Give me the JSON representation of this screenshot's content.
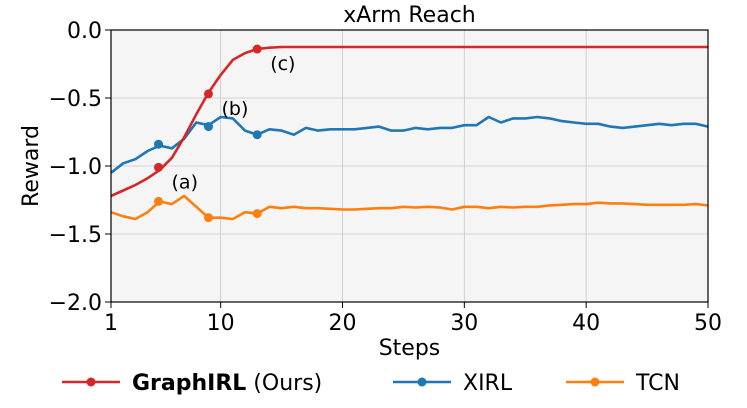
{
  "chart_data": {
    "type": "line",
    "title": "xArm Reach",
    "xlabel": "Steps",
    "ylabel": "Reward",
    "xlim": [
      1,
      50
    ],
    "ylim": [
      -2.0,
      0.0
    ],
    "xticks": [
      "1",
      "10",
      "20",
      "30",
      "40",
      "50"
    ],
    "yticks": [
      "0.0",
      "−0.5",
      "−1.0",
      "−1.5",
      "−2.0"
    ],
    "grid": true,
    "legend_position": "bottom",
    "x": [
      1,
      2,
      3,
      4,
      5,
      6,
      7,
      8,
      9,
      10,
      11,
      12,
      13,
      14,
      15,
      16,
      17,
      18,
      19,
      20,
      21,
      22,
      23,
      24,
      25,
      26,
      27,
      28,
      29,
      30,
      31,
      32,
      33,
      34,
      35,
      36,
      37,
      38,
      39,
      40,
      41,
      42,
      43,
      44,
      45,
      46,
      47,
      48,
      49,
      50
    ],
    "series": [
      {
        "name_bold": "GraphIRL",
        "name_rest": " (Ours)",
        "color": "#d62728",
        "values": [
          -1.22,
          -1.18,
          -1.14,
          -1.09,
          -1.03,
          -0.94,
          -0.79,
          -0.62,
          -0.46,
          -0.33,
          -0.22,
          -0.17,
          -0.14,
          -0.13,
          -0.125,
          -0.125,
          -0.125,
          -0.125,
          -0.125,
          -0.125,
          -0.125,
          -0.125,
          -0.125,
          -0.125,
          -0.125,
          -0.125,
          -0.125,
          -0.125,
          -0.125,
          -0.125,
          -0.125,
          -0.125,
          -0.125,
          -0.125,
          -0.125,
          -0.125,
          -0.125,
          -0.125,
          -0.125,
          -0.125,
          -0.125,
          -0.125,
          -0.125,
          -0.125,
          -0.125,
          -0.125,
          -0.125,
          -0.125,
          -0.125,
          -0.125
        ],
        "markers": [
          {
            "x": 4.9,
            "y": -1.01,
            "label": "(a)"
          },
          {
            "x": 9.0,
            "y": -0.47,
            "label": "(b)"
          },
          {
            "x": 13.0,
            "y": -0.14,
            "label": "(c)"
          }
        ]
      },
      {
        "name_bold": "",
        "name_rest": "XIRL",
        "color": "#1f77b4",
        "values": [
          -1.05,
          -0.98,
          -0.95,
          -0.89,
          -0.85,
          -0.87,
          -0.8,
          -0.68,
          -0.7,
          -0.64,
          -0.65,
          -0.74,
          -0.77,
          -0.73,
          -0.74,
          -0.77,
          -0.72,
          -0.74,
          -0.73,
          -0.73,
          -0.73,
          -0.72,
          -0.71,
          -0.74,
          -0.74,
          -0.72,
          -0.73,
          -0.72,
          -0.72,
          -0.7,
          -0.7,
          -0.64,
          -0.68,
          -0.65,
          -0.65,
          -0.64,
          -0.65,
          -0.67,
          -0.68,
          -0.69,
          -0.69,
          -0.71,
          -0.72,
          -0.71,
          -0.7,
          -0.69,
          -0.7,
          -0.69,
          -0.69,
          -0.71
        ],
        "markers": [
          {
            "x": 4.9,
            "y": -0.84
          },
          {
            "x": 9.0,
            "y": -0.71
          },
          {
            "x": 13.0,
            "y": -0.77
          }
        ]
      },
      {
        "name_bold": "",
        "name_rest": "TCN",
        "color": "#ff7f0e",
        "values": [
          -1.34,
          -1.37,
          -1.39,
          -1.34,
          -1.26,
          -1.28,
          -1.22,
          -1.3,
          -1.38,
          -1.38,
          -1.39,
          -1.34,
          -1.35,
          -1.3,
          -1.31,
          -1.3,
          -1.31,
          -1.31,
          -1.315,
          -1.32,
          -1.32,
          -1.315,
          -1.31,
          -1.31,
          -1.3,
          -1.305,
          -1.3,
          -1.305,
          -1.32,
          -1.3,
          -1.3,
          -1.31,
          -1.3,
          -1.305,
          -1.3,
          -1.3,
          -1.29,
          -1.285,
          -1.28,
          -1.28,
          -1.27,
          -1.275,
          -1.275,
          -1.28,
          -1.285,
          -1.285,
          -1.285,
          -1.285,
          -1.28,
          -1.29
        ],
        "markers": [
          {
            "x": 4.9,
            "y": -1.26
          },
          {
            "x": 9.0,
            "y": -1.38
          },
          {
            "x": 13.0,
            "y": -1.35
          }
        ]
      }
    ]
  }
}
